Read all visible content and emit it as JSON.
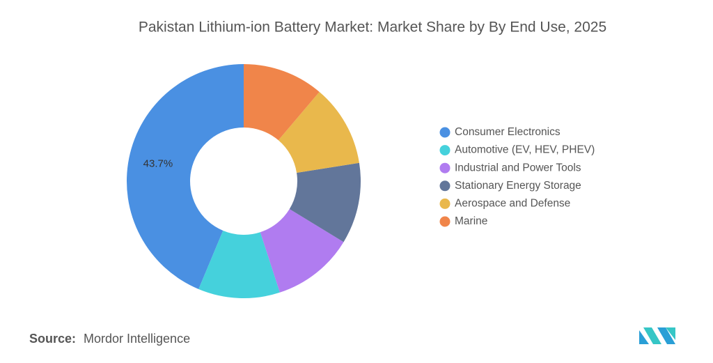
{
  "chart_data": {
    "type": "donut",
    "title": "Pakistan Lithium-ion Battery Market: Market Share by By End Use, 2025",
    "categories": [
      "Consumer Electronics",
      "Automotive (EV, HEV, PHEV)",
      "Industrial and Power Tools",
      "Stationary Energy Storage",
      "Aerospace and Defense",
      "Marine"
    ],
    "values": [
      43.7,
      11.3,
      11.3,
      11.2,
      11.3,
      11.2
    ],
    "value_labels": [
      "43.7%",
      null,
      null,
      null,
      null,
      null
    ],
    "colors": [
      "#4a90e2",
      "#45d1dc",
      "#b07cf0",
      "#62769a",
      "#e9b84c",
      "#f0854a"
    ],
    "legend": "right",
    "source_label": "Source:",
    "source": "Mordor Intelligence"
  }
}
